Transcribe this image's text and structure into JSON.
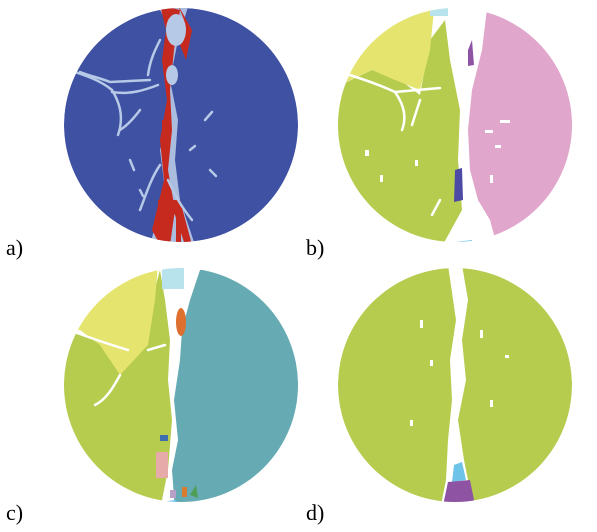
{
  "panels": [
    {
      "id": "a",
      "label": "a)",
      "kind": "crack-intensity map",
      "background_color": "#3f51a3",
      "crack_colors": [
        "#b6c9e6",
        "#c62a1e",
        "#e8a090"
      ]
    },
    {
      "id": "b",
      "label": "b)",
      "kind": "fragment segmentation",
      "region_colors": [
        "#e4e46f",
        "#b5cc4f",
        "#e0a6cc",
        "#b8e3ec",
        "#8e53a3",
        "#4c4aa5",
        "#6dc3e8"
      ]
    },
    {
      "id": "c",
      "label": "c)",
      "kind": "fragment segmentation",
      "region_colors": [
        "#e4e46f",
        "#b5cc4f",
        "#66abb3",
        "#b8e3ec",
        "#dd6f2f",
        "#e6aaa9",
        "#3d6fb0",
        "#d97c2e",
        "#6dc3e8",
        "#b9a0c9",
        "#4f9e56"
      ]
    },
    {
      "id": "d",
      "label": "d)",
      "kind": "fragment segmentation",
      "region_colors": [
        "#b5cc4f",
        "#8e53a3",
        "#6dc3e8"
      ]
    }
  ]
}
